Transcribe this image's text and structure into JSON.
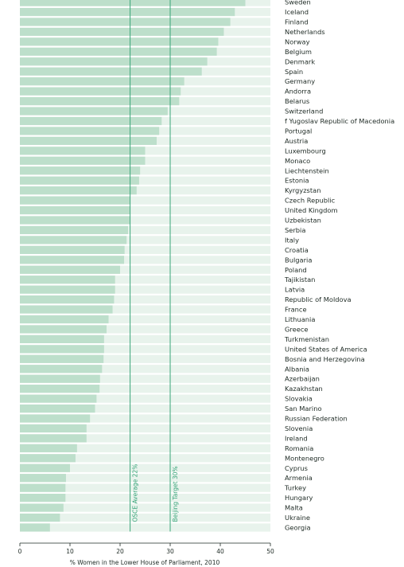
{
  "chart_data": {
    "type": "bar",
    "orientation": "horizontal",
    "title": "",
    "xlabel": "% Women in the Lower House of Parliament, 2010",
    "ylabel": "",
    "xlim": [
      0,
      50
    ],
    "xticks": [
      0,
      10,
      20,
      30,
      40,
      50
    ],
    "grid": false,
    "colors": {
      "bar": "#bddfcb",
      "band": "#e8f3ec",
      "reference_line": "#3aa57a",
      "text": "#1e2a24"
    },
    "categories": [
      "Sweden",
      "Iceland",
      "Finland",
      "Netherlands",
      "Norway",
      "Belgium",
      "Denmark",
      "Spain",
      "Germany",
      "Andorra",
      "Belarus",
      "Switzerland",
      "f Yugoslav Republic of Macedonia",
      "Portugal",
      "Austria",
      "Luxembourg",
      "Monaco",
      "Liechtenstein",
      "Estonia",
      "Kyrgyzstan",
      "Czech Republic",
      "United Kingdom",
      "Uzbekistan",
      "Serbia",
      "Italy",
      "Croatia",
      "Bulgaria",
      "Poland",
      "Tajikistan",
      "Latvia",
      "Republic of Moldova",
      "France",
      "Lithuania",
      "Greece",
      "Turkmenistan",
      "United States of America",
      "Bosnia and Herzegovina",
      "Albania",
      "Azerbaijan",
      "Kazakhstan",
      "Slovakia",
      "San Marino",
      "Russian Federation",
      "Slovenia",
      "Ireland",
      "Romania",
      "Montenegro",
      "Cyprus",
      "Armenia",
      "Turkey",
      "Hungary",
      "Malta",
      "Ukraine",
      "Georgia"
    ],
    "values": [
      45.0,
      42.9,
      42.0,
      40.7,
      39.6,
      39.3,
      37.4,
      36.3,
      32.8,
      32.1,
      31.8,
      29.5,
      28.3,
      27.8,
      27.3,
      25.0,
      25.0,
      24.0,
      23.8,
      23.3,
      22.0,
      22.0,
      22.0,
      21.6,
      21.3,
      20.9,
      20.8,
      20.0,
      19.0,
      19.0,
      18.8,
      18.5,
      17.7,
      17.3,
      16.8,
      16.8,
      16.7,
      16.4,
      16.0,
      15.9,
      15.3,
      15.0,
      14.0,
      13.3,
      13.3,
      11.4,
      11.1,
      10.0,
      9.2,
      9.1,
      9.1,
      8.7,
      8.0,
      6.0
    ],
    "reference_lines": [
      {
        "value": 22,
        "label": "OSCE Average 22%"
      },
      {
        "value": 30,
        "label": "Beijing Target 30%"
      }
    ]
  }
}
